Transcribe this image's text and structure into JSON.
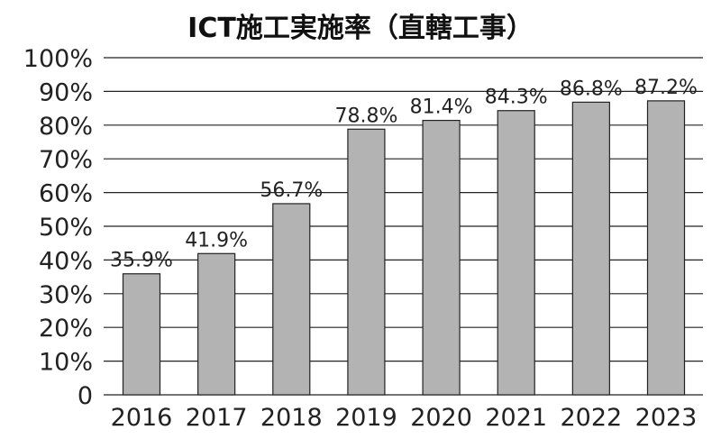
{
  "chart_data": {
    "type": "bar",
    "title": "ICT施工実施率（直轄工事）",
    "categories": [
      "2016",
      "2017",
      "2018",
      "2019",
      "2020",
      "2021",
      "2022",
      "2023"
    ],
    "values": [
      35.9,
      41.9,
      56.7,
      78.8,
      81.4,
      84.3,
      86.8,
      87.2
    ],
    "data_labels": [
      "35.9%",
      "41.9%",
      "56.7%",
      "78.8%",
      "81.4%",
      "84.3%",
      "86.8%",
      "87.2%"
    ],
    "y_ticks": [
      0,
      10,
      20,
      30,
      40,
      50,
      60,
      70,
      80,
      90,
      100
    ],
    "y_tick_labels": [
      "0",
      "10%",
      "20%",
      "30%",
      "40%",
      "50%",
      "60%",
      "70%",
      "80%",
      "90%",
      "100%"
    ],
    "ylim": [
      0,
      100
    ],
    "grid": true,
    "legend": "none",
    "colors": {
      "bar_fill": "#b3b3b3",
      "bar_stroke": "#222222",
      "grid": "#222222",
      "text": "#222222"
    }
  }
}
